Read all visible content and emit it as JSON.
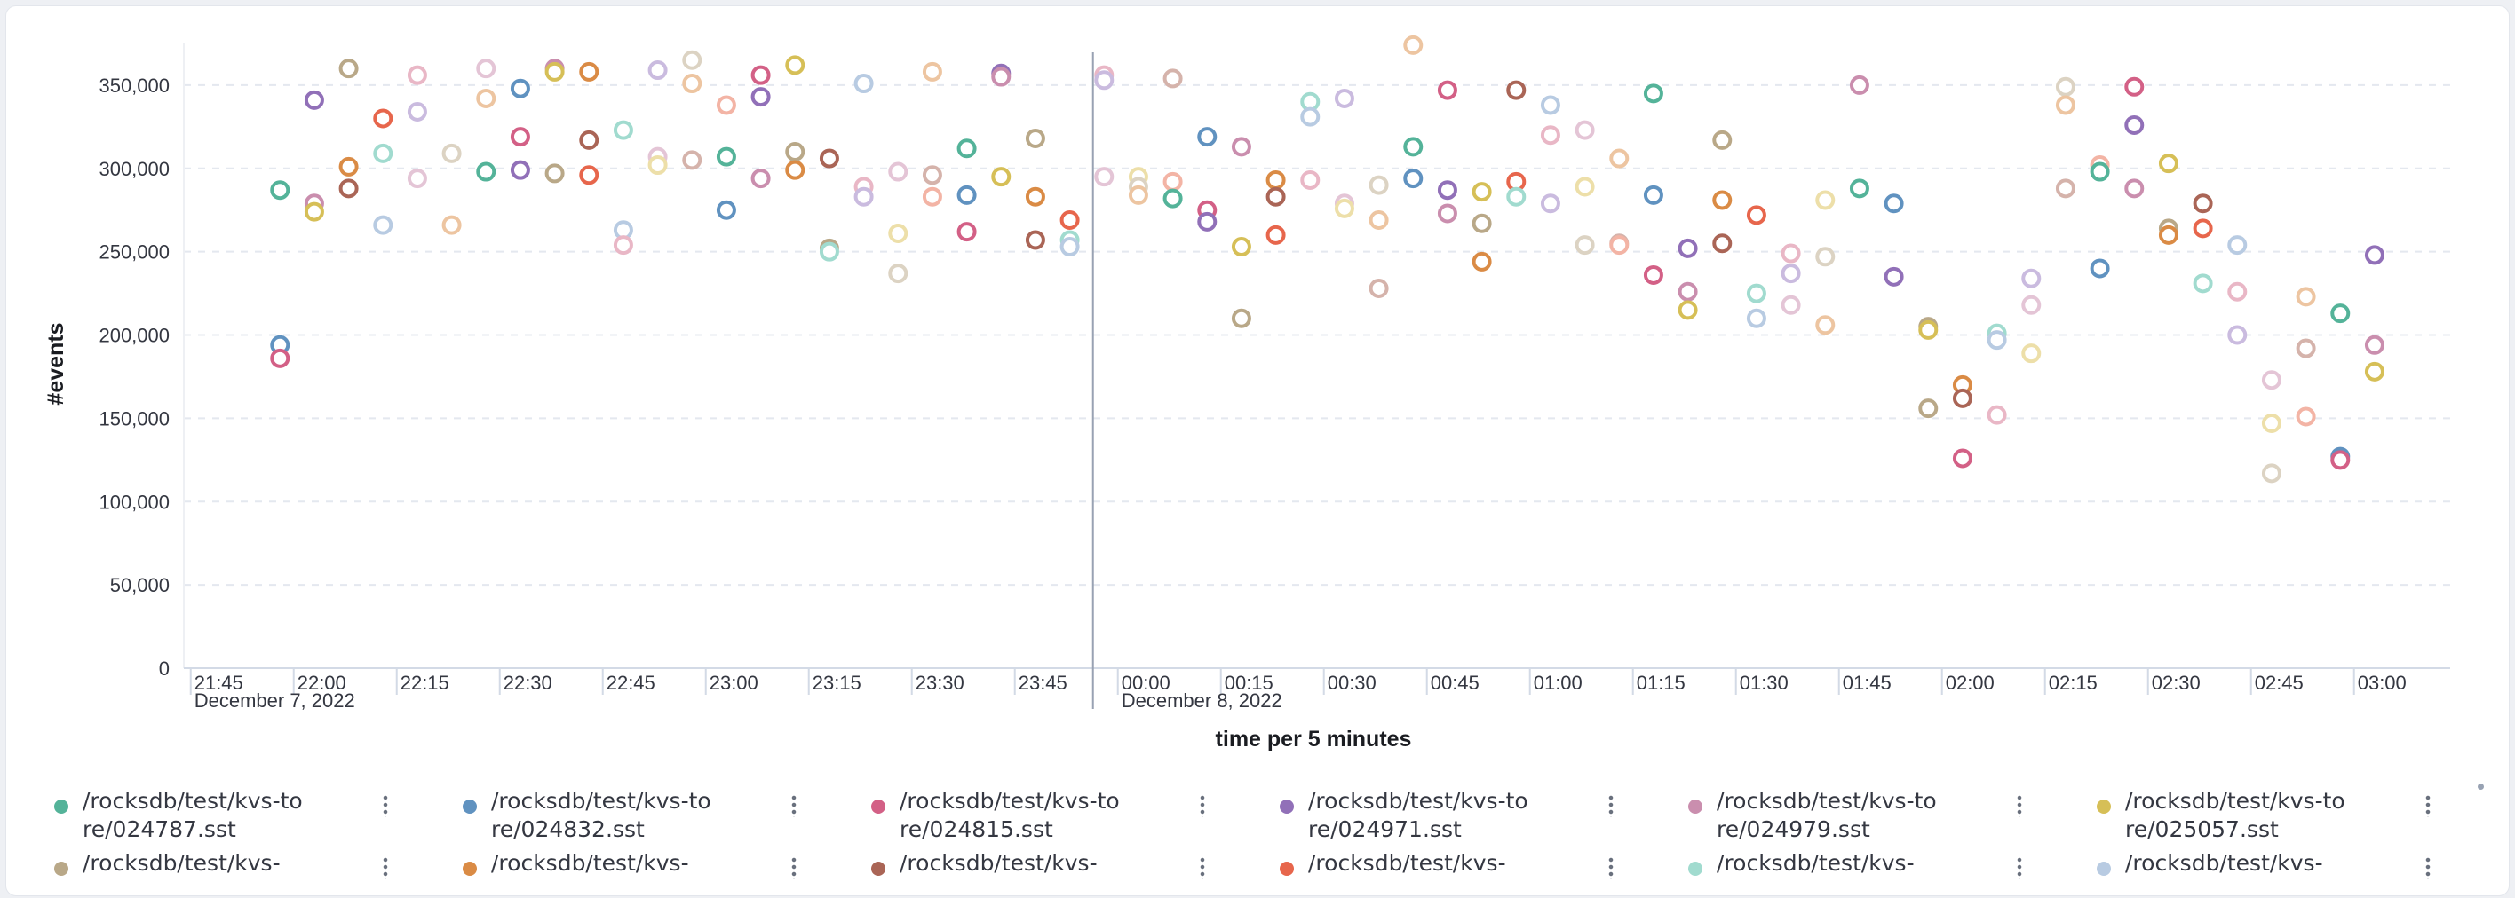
{
  "chart_data": {
    "type": "scatter",
    "title": "",
    "ylabel": "#events",
    "xlabel": "time per 5 minutes",
    "ylim": [
      0,
      375000
    ],
    "y_ticks": [
      0,
      50000,
      100000,
      150000,
      200000,
      250000,
      300000,
      350000
    ],
    "y_tick_labels": [
      "0",
      "50,000",
      "100,000",
      "150,000",
      "200,000",
      "250,000",
      "300,000",
      "350,000"
    ],
    "xlim": [
      "21:44",
      "03:14"
    ],
    "x_ticks": [
      "21:45",
      "22:00",
      "22:15",
      "22:30",
      "22:45",
      "23:00",
      "23:15",
      "23:30",
      "23:45",
      "00:00",
      "00:15",
      "00:30",
      "00:45",
      "01:00",
      "01:15",
      "01:30",
      "01:45",
      "02:00",
      "02:15",
      "02:30",
      "02:45",
      "03:00"
    ],
    "date_labels": [
      {
        "at": "21:45",
        "text": "December 7, 2022"
      },
      {
        "at": "00:00",
        "text": "December 8, 2022"
      }
    ],
    "grid": "horizontal-dashed",
    "marker": "hollow-circle",
    "palette": [
      "#54b399",
      "#6092c0",
      "#d36086",
      "#9170b8",
      "#ca8eae",
      "#d6bf57",
      "#b9a888",
      "#da8b45",
      "#aa6556",
      "#e7664c",
      "#a1dbcf",
      "#b8cbe2",
      "#e9b7c6",
      "#cabbdf",
      "#e4c5d6",
      "#eddfa9",
      "#dcd3c3",
      "#edc5a1",
      "#d5b3ab",
      "#f3b4a5"
    ],
    "points": [
      {
        "t": "21:58",
        "y": 287000,
        "c": 0
      },
      {
        "t": "21:58",
        "y": 194000,
        "c": 1
      },
      {
        "t": "21:58",
        "y": 186000,
        "c": 2
      },
      {
        "t": "22:03",
        "y": 341000,
        "c": 3
      },
      {
        "t": "22:03",
        "y": 279000,
        "c": 4
      },
      {
        "t": "22:03",
        "y": 274000,
        "c": 5
      },
      {
        "t": "22:08",
        "y": 360000,
        "c": 6
      },
      {
        "t": "22:08",
        "y": 301000,
        "c": 7
      },
      {
        "t": "22:08",
        "y": 288000,
        "c": 8
      },
      {
        "t": "22:13",
        "y": 330000,
        "c": 9
      },
      {
        "t": "22:13",
        "y": 309000,
        "c": 10
      },
      {
        "t": "22:13",
        "y": 266000,
        "c": 11
      },
      {
        "t": "22:18",
        "y": 356000,
        "c": 12
      },
      {
        "t": "22:18",
        "y": 334000,
        "c": 13
      },
      {
        "t": "22:18",
        "y": 294000,
        "c": 14
      },
      {
        "t": "22:23",
        "y": 309000,
        "c": 16
      },
      {
        "t": "22:23",
        "y": 266000,
        "c": 17
      },
      {
        "t": "22:28",
        "y": 360000,
        "c": 14
      },
      {
        "t": "22:28",
        "y": 342000,
        "c": 17
      },
      {
        "t": "22:28",
        "y": 298000,
        "c": 0
      },
      {
        "t": "22:33",
        "y": 348000,
        "c": 1
      },
      {
        "t": "22:33",
        "y": 319000,
        "c": 2
      },
      {
        "t": "22:33",
        "y": 299000,
        "c": 3
      },
      {
        "t": "22:38",
        "y": 360000,
        "c": 4
      },
      {
        "t": "22:38",
        "y": 358000,
        "c": 5
      },
      {
        "t": "22:38",
        "y": 297000,
        "c": 6
      },
      {
        "t": "22:43",
        "y": 358000,
        "c": 7
      },
      {
        "t": "22:43",
        "y": 317000,
        "c": 8
      },
      {
        "t": "22:43",
        "y": 296000,
        "c": 9
      },
      {
        "t": "22:48",
        "y": 323000,
        "c": 10
      },
      {
        "t": "22:48",
        "y": 263000,
        "c": 11
      },
      {
        "t": "22:48",
        "y": 254000,
        "c": 12
      },
      {
        "t": "22:53",
        "y": 359000,
        "c": 13
      },
      {
        "t": "22:53",
        "y": 307000,
        "c": 14
      },
      {
        "t": "22:53",
        "y": 302000,
        "c": 15
      },
      {
        "t": "22:58",
        "y": 365000,
        "c": 16
      },
      {
        "t": "22:58",
        "y": 351000,
        "c": 17
      },
      {
        "t": "22:58",
        "y": 305000,
        "c": 18
      },
      {
        "t": "23:03",
        "y": 338000,
        "c": 19
      },
      {
        "t": "23:03",
        "y": 307000,
        "c": 0
      },
      {
        "t": "23:03",
        "y": 275000,
        "c": 1
      },
      {
        "t": "23:08",
        "y": 356000,
        "c": 2
      },
      {
        "t": "23:08",
        "y": 343000,
        "c": 3
      },
      {
        "t": "23:08",
        "y": 294000,
        "c": 4
      },
      {
        "t": "23:13",
        "y": 362000,
        "c": 5
      },
      {
        "t": "23:13",
        "y": 310000,
        "c": 6
      },
      {
        "t": "23:13",
        "y": 299000,
        "c": 7
      },
      {
        "t": "23:18",
        "y": 306000,
        "c": 8
      },
      {
        "t": "23:18",
        "y": 252000,
        "c": 6
      },
      {
        "t": "23:18",
        "y": 250000,
        "c": 10
      },
      {
        "t": "23:23",
        "y": 351000,
        "c": 11
      },
      {
        "t": "23:23",
        "y": 289000,
        "c": 12
      },
      {
        "t": "23:23",
        "y": 283000,
        "c": 13
      },
      {
        "t": "23:28",
        "y": 298000,
        "c": 14
      },
      {
        "t": "23:28",
        "y": 261000,
        "c": 15
      },
      {
        "t": "23:28",
        "y": 237000,
        "c": 16
      },
      {
        "t": "23:33",
        "y": 358000,
        "c": 17
      },
      {
        "t": "23:33",
        "y": 296000,
        "c": 18
      },
      {
        "t": "23:33",
        "y": 283000,
        "c": 19
      },
      {
        "t": "23:38",
        "y": 312000,
        "c": 0
      },
      {
        "t": "23:38",
        "y": 284000,
        "c": 1
      },
      {
        "t": "23:38",
        "y": 262000,
        "c": 2
      },
      {
        "t": "23:43",
        "y": 357000,
        "c": 3
      },
      {
        "t": "23:43",
        "y": 355000,
        "c": 4
      },
      {
        "t": "23:43",
        "y": 295000,
        "c": 5
      },
      {
        "t": "23:48",
        "y": 318000,
        "c": 6
      },
      {
        "t": "23:48",
        "y": 283000,
        "c": 7
      },
      {
        "t": "23:48",
        "y": 257000,
        "c": 8
      },
      {
        "t": "23:53",
        "y": 269000,
        "c": 9
      },
      {
        "t": "23:53",
        "y": 257000,
        "c": 10
      },
      {
        "t": "23:53",
        "y": 253000,
        "c": 11
      },
      {
        "t": "23:58",
        "y": 356000,
        "c": 12
      },
      {
        "t": "23:58",
        "y": 353000,
        "c": 13
      },
      {
        "t": "23:58",
        "y": 295000,
        "c": 14
      },
      {
        "t": "00:03",
        "y": 295000,
        "c": 15
      },
      {
        "t": "00:03",
        "y": 289000,
        "c": 16
      },
      {
        "t": "00:03",
        "y": 284000,
        "c": 17
      },
      {
        "t": "00:08",
        "y": 354000,
        "c": 18
      },
      {
        "t": "00:08",
        "y": 292000,
        "c": 19
      },
      {
        "t": "00:08",
        "y": 282000,
        "c": 0
      },
      {
        "t": "00:13",
        "y": 319000,
        "c": 1
      },
      {
        "t": "00:13",
        "y": 275000,
        "c": 2
      },
      {
        "t": "00:13",
        "y": 268000,
        "c": 3
      },
      {
        "t": "00:18",
        "y": 313000,
        "c": 4
      },
      {
        "t": "00:18",
        "y": 253000,
        "c": 5
      },
      {
        "t": "00:18",
        "y": 210000,
        "c": 6
      },
      {
        "t": "00:23",
        "y": 293000,
        "c": 7
      },
      {
        "t": "00:23",
        "y": 283000,
        "c": 8
      },
      {
        "t": "00:23",
        "y": 260000,
        "c": 9
      },
      {
        "t": "00:28",
        "y": 340000,
        "c": 10
      },
      {
        "t": "00:28",
        "y": 331000,
        "c": 11
      },
      {
        "t": "00:28",
        "y": 293000,
        "c": 12
      },
      {
        "t": "00:33",
        "y": 342000,
        "c": 13
      },
      {
        "t": "00:33",
        "y": 279000,
        "c": 14
      },
      {
        "t": "00:33",
        "y": 276000,
        "c": 15
      },
      {
        "t": "00:38",
        "y": 290000,
        "c": 16
      },
      {
        "t": "00:38",
        "y": 269000,
        "c": 17
      },
      {
        "t": "00:38",
        "y": 228000,
        "c": 18
      },
      {
        "t": "00:43",
        "y": 374000,
        "c": 17
      },
      {
        "t": "00:43",
        "y": 313000,
        "c": 0
      },
      {
        "t": "00:43",
        "y": 294000,
        "c": 1
      },
      {
        "t": "00:48",
        "y": 347000,
        "c": 2
      },
      {
        "t": "00:48",
        "y": 287000,
        "c": 3
      },
      {
        "t": "00:48",
        "y": 273000,
        "c": 4
      },
      {
        "t": "00:53",
        "y": 286000,
        "c": 5
      },
      {
        "t": "00:53",
        "y": 267000,
        "c": 6
      },
      {
        "t": "00:53",
        "y": 244000,
        "c": 7
      },
      {
        "t": "00:58",
        "y": 347000,
        "c": 8
      },
      {
        "t": "00:58",
        "y": 292000,
        "c": 9
      },
      {
        "t": "00:58",
        "y": 283000,
        "c": 10
      },
      {
        "t": "01:03",
        "y": 338000,
        "c": 11
      },
      {
        "t": "01:03",
        "y": 320000,
        "c": 12
      },
      {
        "t": "01:03",
        "y": 279000,
        "c": 13
      },
      {
        "t": "01:08",
        "y": 323000,
        "c": 14
      },
      {
        "t": "01:08",
        "y": 289000,
        "c": 15
      },
      {
        "t": "01:08",
        "y": 254000,
        "c": 16
      },
      {
        "t": "01:13",
        "y": 306000,
        "c": 17
      },
      {
        "t": "01:13",
        "y": 255000,
        "c": 18
      },
      {
        "t": "01:13",
        "y": 254000,
        "c": 19
      },
      {
        "t": "01:18",
        "y": 345000,
        "c": 0
      },
      {
        "t": "01:18",
        "y": 284000,
        "c": 1
      },
      {
        "t": "01:18",
        "y": 236000,
        "c": 2
      },
      {
        "t": "01:23",
        "y": 252000,
        "c": 3
      },
      {
        "t": "01:23",
        "y": 226000,
        "c": 4
      },
      {
        "t": "01:23",
        "y": 215000,
        "c": 5
      },
      {
        "t": "01:28",
        "y": 317000,
        "c": 6
      },
      {
        "t": "01:28",
        "y": 281000,
        "c": 7
      },
      {
        "t": "01:28",
        "y": 255000,
        "c": 8
      },
      {
        "t": "01:33",
        "y": 272000,
        "c": 9
      },
      {
        "t": "01:33",
        "y": 225000,
        "c": 10
      },
      {
        "t": "01:33",
        "y": 210000,
        "c": 11
      },
      {
        "t": "01:38",
        "y": 249000,
        "c": 12
      },
      {
        "t": "01:38",
        "y": 237000,
        "c": 13
      },
      {
        "t": "01:38",
        "y": 218000,
        "c": 14
      },
      {
        "t": "01:43",
        "y": 281000,
        "c": 15
      },
      {
        "t": "01:43",
        "y": 247000,
        "c": 16
      },
      {
        "t": "01:43",
        "y": 206000,
        "c": 17
      },
      {
        "t": "01:48",
        "y": 350000,
        "c": 4
      },
      {
        "t": "01:48",
        "y": 288000,
        "c": 0
      },
      {
        "t": "01:53",
        "y": 279000,
        "c": 1
      },
      {
        "t": "01:53",
        "y": 235000,
        "c": 3
      },
      {
        "t": "01:58",
        "y": 205000,
        "c": 6
      },
      {
        "t": "01:58",
        "y": 203000,
        "c": 5
      },
      {
        "t": "01:58",
        "y": 156000,
        "c": 6
      },
      {
        "t": "02:03",
        "y": 170000,
        "c": 7
      },
      {
        "t": "02:03",
        "y": 162000,
        "c": 8
      },
      {
        "t": "02:03",
        "y": 126000,
        "c": 2
      },
      {
        "t": "02:08",
        "y": 201000,
        "c": 10
      },
      {
        "t": "02:08",
        "y": 197000,
        "c": 11
      },
      {
        "t": "02:08",
        "y": 152000,
        "c": 12
      },
      {
        "t": "02:13",
        "y": 234000,
        "c": 13
      },
      {
        "t": "02:13",
        "y": 218000,
        "c": 14
      },
      {
        "t": "02:13",
        "y": 189000,
        "c": 15
      },
      {
        "t": "02:18",
        "y": 349000,
        "c": 16
      },
      {
        "t": "02:18",
        "y": 338000,
        "c": 17
      },
      {
        "t": "02:18",
        "y": 288000,
        "c": 18
      },
      {
        "t": "02:23",
        "y": 302000,
        "c": 19
      },
      {
        "t": "02:23",
        "y": 298000,
        "c": 0
      },
      {
        "t": "02:23",
        "y": 240000,
        "c": 1
      },
      {
        "t": "02:28",
        "y": 349000,
        "c": 2
      },
      {
        "t": "02:28",
        "y": 326000,
        "c": 3
      },
      {
        "t": "02:28",
        "y": 288000,
        "c": 4
      },
      {
        "t": "02:33",
        "y": 303000,
        "c": 5
      },
      {
        "t": "02:33",
        "y": 264000,
        "c": 6
      },
      {
        "t": "02:33",
        "y": 260000,
        "c": 7
      },
      {
        "t": "02:38",
        "y": 279000,
        "c": 8
      },
      {
        "t": "02:38",
        "y": 264000,
        "c": 9
      },
      {
        "t": "02:38",
        "y": 231000,
        "c": 10
      },
      {
        "t": "02:43",
        "y": 254000,
        "c": 11
      },
      {
        "t": "02:43",
        "y": 226000,
        "c": 12
      },
      {
        "t": "02:43",
        "y": 200000,
        "c": 13
      },
      {
        "t": "02:48",
        "y": 173000,
        "c": 14
      },
      {
        "t": "02:48",
        "y": 147000,
        "c": 15
      },
      {
        "t": "02:48",
        "y": 117000,
        "c": 16
      },
      {
        "t": "02:53",
        "y": 223000,
        "c": 17
      },
      {
        "t": "02:53",
        "y": 192000,
        "c": 18
      },
      {
        "t": "02:53",
        "y": 151000,
        "c": 19
      },
      {
        "t": "02:58",
        "y": 213000,
        "c": 0
      },
      {
        "t": "02:58",
        "y": 127000,
        "c": 1
      },
      {
        "t": "02:58",
        "y": 125000,
        "c": 2
      },
      {
        "t": "03:03",
        "y": 248000,
        "c": 3
      },
      {
        "t": "03:03",
        "y": 194000,
        "c": 4
      },
      {
        "t": "03:03",
        "y": 178000,
        "c": 5
      }
    ]
  },
  "legend": {
    "items": [
      {
        "label": "/rocksdb/test/kvs-tore/024787.sst",
        "color": "#54b399"
      },
      {
        "label": "/rocksdb/test/kvs-tore/024832.sst",
        "color": "#6092c0"
      },
      {
        "label": "/rocksdb/test/kvs-tore/024815.sst",
        "color": "#d36086"
      },
      {
        "label": "/rocksdb/test/kvs-tore/024971.sst",
        "color": "#9170b8"
      },
      {
        "label": "/rocksdb/test/kvs-tore/024979.sst",
        "color": "#ca8eae"
      },
      {
        "label": "/rocksdb/test/kvs-tore/025057.sst",
        "color": "#d6bf57"
      },
      {
        "label": "/rocksdb/test/kvs-",
        "color": "#b9a888"
      },
      {
        "label": "/rocksdb/test/kvs-",
        "color": "#da8b45"
      },
      {
        "label": "/rocksdb/test/kvs-",
        "color": "#aa6556"
      },
      {
        "label": "/rocksdb/test/kvs-",
        "color": "#e7664c"
      },
      {
        "label": "/rocksdb/test/kvs-",
        "color": "#a1dbcf"
      },
      {
        "label": "/rocksdb/test/kvs-",
        "color": "#b8cbe2"
      }
    ]
  }
}
